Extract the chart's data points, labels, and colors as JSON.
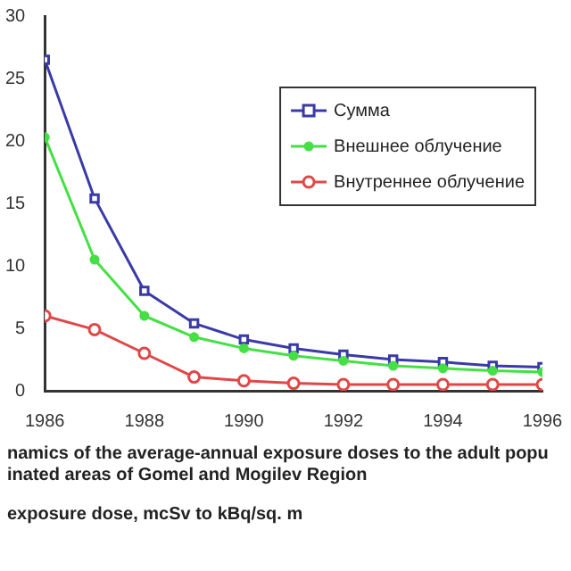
{
  "chart_data": {
    "type": "line",
    "x": [
      1986,
      1987,
      1988,
      1989,
      1990,
      1991,
      1992,
      1993,
      1994,
      1995,
      1996
    ],
    "series": [
      {
        "name": "Сумма",
        "color": "#3a3aa8",
        "marker": "square",
        "values": [
          26.5,
          15.4,
          8.0,
          5.4,
          4.1,
          3.4,
          2.9,
          2.5,
          2.3,
          2.0,
          1.9
        ]
      },
      {
        "name": "Внешнее облучение",
        "color": "#44e044",
        "marker": "circle",
        "values": [
          20.3,
          10.5,
          6.0,
          4.3,
          3.4,
          2.8,
          2.4,
          2.0,
          1.8,
          1.6,
          1.5
        ]
      },
      {
        "name": "Внутреннее облучение",
        "color": "#e04848",
        "marker": "circle",
        "values": [
          6.0,
          4.9,
          3.0,
          1.1,
          0.8,
          0.6,
          0.5,
          0.5,
          0.5,
          0.5,
          0.5
        ]
      }
    ],
    "xlim": [
      1986,
      1996
    ],
    "xticks": [
      1986,
      1988,
      1990,
      1992,
      1994,
      1996
    ],
    "ylim": [
      0,
      30
    ],
    "yticks": [
      0,
      5,
      10,
      15,
      20,
      25,
      30
    ],
    "grid": false,
    "legend": "top right",
    "annotations": [
      "namics of  the average-annual exposure doses to the adult popu",
      "inated areas of Gomel and Mogilev Region",
      "exposure dose, mcSv to kBq/sq. m"
    ]
  }
}
